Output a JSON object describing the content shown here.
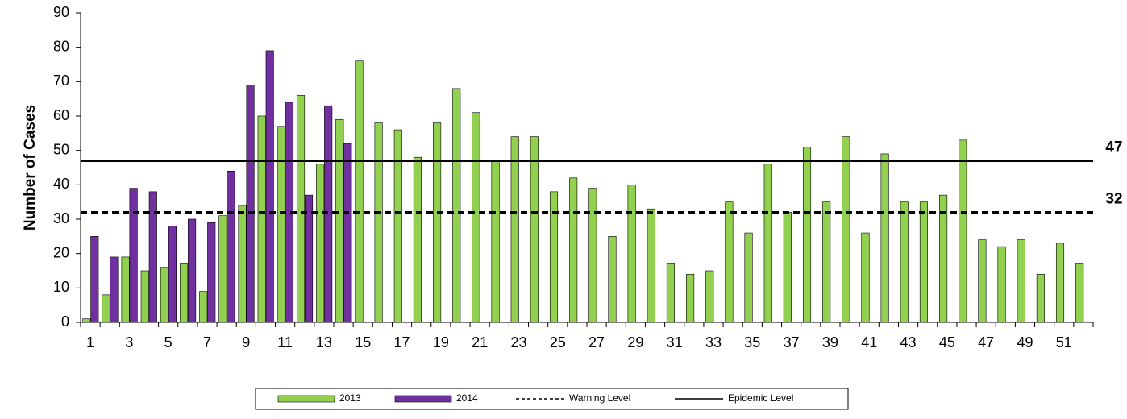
{
  "chart_data": {
    "type": "bar",
    "y_label": "Number of Cases",
    "categories": [
      1,
      null,
      3,
      null,
      5,
      null,
      7,
      null,
      9,
      null,
      11,
      null,
      13,
      null,
      15,
      null,
      17,
      null,
      19,
      null,
      21,
      null,
      23,
      null,
      25,
      null,
      27,
      null,
      29,
      null,
      31,
      null,
      33,
      null,
      35,
      null,
      37,
      null,
      39,
      null,
      41,
      null,
      43,
      null,
      45,
      null,
      47,
      null,
      49,
      null,
      51,
      null
    ],
    "series": [
      {
        "name": "2013",
        "color": "#92d050",
        "values": [
          1,
          8,
          19,
          15,
          16,
          17,
          9,
          31,
          34,
          60,
          57,
          66,
          46,
          59,
          76,
          58,
          56,
          48,
          58,
          68,
          61,
          47,
          54,
          54,
          38,
          42,
          39,
          25,
          40,
          33,
          17,
          14,
          15,
          35,
          26,
          46,
          32,
          51,
          35,
          54,
          26,
          49,
          35,
          35,
          37,
          53,
          24,
          22,
          24,
          14,
          23,
          17
        ]
      },
      {
        "name": "2014",
        "color": "#7030a0",
        "values": [
          25,
          19,
          39,
          38,
          28,
          30,
          29,
          44,
          69,
          79,
          64,
          37,
          63,
          52,
          null,
          null,
          null,
          null,
          null,
          null,
          null,
          null,
          null,
          null,
          null,
          null,
          null,
          null,
          null,
          null,
          null,
          null,
          null,
          null,
          null,
          null,
          null,
          null,
          null,
          null,
          null,
          null,
          null,
          null,
          null,
          null,
          null,
          null,
          null,
          null,
          null,
          null
        ]
      }
    ],
    "reference_lines": [
      {
        "name": "Warning Level",
        "value": 32,
        "dashed": true,
        "color": "#000000"
      },
      {
        "name": "Epidemic Level",
        "value": 47,
        "dashed": false,
        "color": "#000000"
      }
    ],
    "ylim": [
      0,
      90
    ],
    "yticks": [
      0,
      10,
      20,
      30,
      40,
      50,
      60,
      70,
      80,
      90
    ],
    "grid": false
  }
}
